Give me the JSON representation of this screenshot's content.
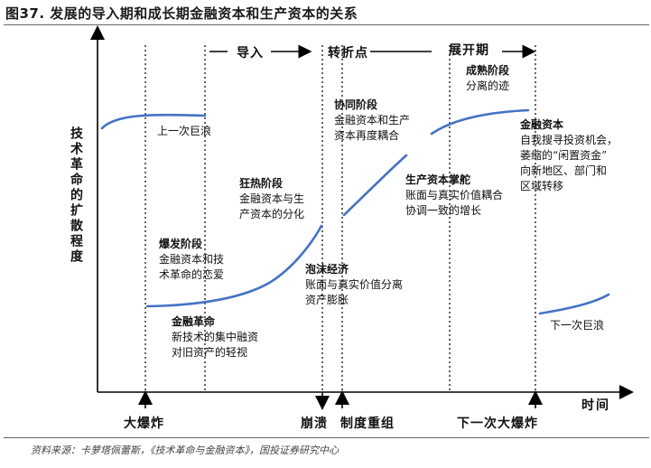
{
  "title": "图37. 发展的导入期和成长期金融资本和生产资本的关系",
  "source": "资料来源：卡萝塔佩蕾斯，《技术革命与金融资本》，国投证券研究中心",
  "axes": {
    "y_label": "技术革命的扩散程度",
    "x_label": "时间"
  },
  "phases": {
    "installation": "导入",
    "turning_point": "转折点",
    "deployment": "展开期"
  },
  "events": {
    "big_bang": "大爆炸",
    "collapse": "崩溃",
    "restructuring": "制度重组",
    "next_big_bang": "下一次大爆炸"
  },
  "annotations": {
    "prev_wave": "上一次巨浪",
    "next_wave": "下一次巨浪",
    "irruption": {
      "heading": "爆发阶段",
      "line1": "金融资本和技",
      "line2": "术革命的恋爱"
    },
    "frenzy": {
      "heading": "狂热阶段",
      "line1": "金融资本与生",
      "line2": "产资本的分化"
    },
    "fin_revolution": {
      "heading": "金融革命",
      "line1": "新技术的集中融资",
      "line2": "对旧资产的轻视"
    },
    "bubble": {
      "heading": "泡沫经济",
      "line1": "账面与真实价值分离",
      "line2": "资产膨胀"
    },
    "synergy": {
      "heading": "协同阶段",
      "line1": "金融资本和生产",
      "line2": "资本再度耦合"
    },
    "maturity": {
      "heading": "成熟阶段",
      "line1": "分离的迹"
    },
    "prod_capital": {
      "heading": "生产资本掌舵",
      "line1": "账面与真实价值耦合",
      "line2": "协调一致的增长"
    },
    "fin_capital": {
      "heading": "金融资本",
      "line1": "自我搜寻投资机会，",
      "line2": "萎缩的“闲置资金”",
      "line3": "向新地区、部门和",
      "line4": "区域转移"
    }
  },
  "colors": {
    "curve": "#4472c4",
    "axis": "#000000"
  }
}
